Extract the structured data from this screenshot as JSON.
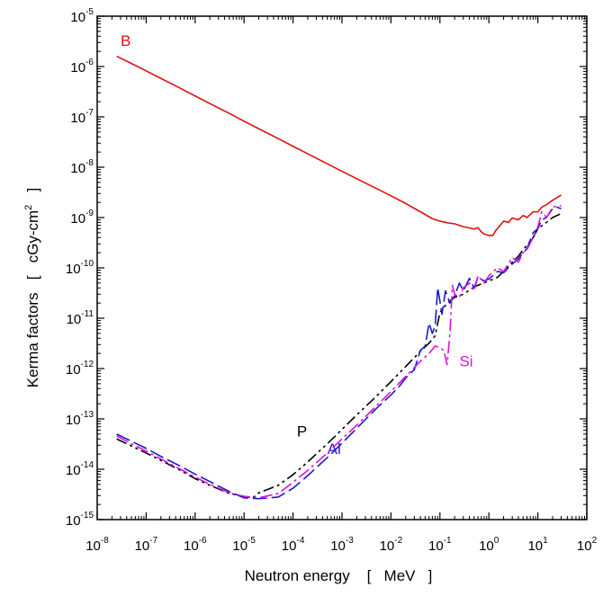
{
  "chart_data": {
    "type": "line",
    "title": "",
    "xlabel": "Neutron energy    [   MeV   ]",
    "ylabel_main": "Kerma factors   [   cGy-cm",
    "ylabel_sup": "2",
    "ylabel_end": "   ]",
    "x_scale": "log",
    "y_scale": "log",
    "xlim": [
      1e-08,
      100
    ],
    "ylim": [
      1e-15,
      1e-05
    ],
    "x_ticks": [
      {
        "base": "10",
        "exp": "-8",
        "value": 1e-08
      },
      {
        "base": "10",
        "exp": "-7",
        "value": 1e-07
      },
      {
        "base": "10",
        "exp": "-6",
        "value": 1e-06
      },
      {
        "base": "10",
        "exp": "-5",
        "value": 1e-05
      },
      {
        "base": "10",
        "exp": "-4",
        "value": 0.0001
      },
      {
        "base": "10",
        "exp": "-3",
        "value": 0.001
      },
      {
        "base": "10",
        "exp": "-2",
        "value": 0.01
      },
      {
        "base": "10",
        "exp": "-1",
        "value": 0.1
      },
      {
        "base": "10",
        "exp": "0",
        "value": 1
      },
      {
        "base": "10",
        "exp": "1",
        "value": 10
      },
      {
        "base": "10",
        "exp": "2",
        "value": 100
      }
    ],
    "y_ticks": [
      {
        "base": "10",
        "exp": "-5",
        "value": 1e-05
      },
      {
        "base": "10",
        "exp": "-6",
        "value": 1e-06
      },
      {
        "base": "10",
        "exp": "-7",
        "value": 1e-07
      },
      {
        "base": "10",
        "exp": "-8",
        "value": 1e-08
      },
      {
        "base": "10",
        "exp": "-9",
        "value": 1e-09
      },
      {
        "base": "10",
        "exp": "-10",
        "value": 1e-10
      },
      {
        "base": "10",
        "exp": "-11",
        "value": 1e-11
      },
      {
        "base": "10",
        "exp": "-12",
        "value": 1e-12
      },
      {
        "base": "10",
        "exp": "-13",
        "value": 1e-13
      },
      {
        "base": "10",
        "exp": "-14",
        "value": 1e-14
      },
      {
        "base": "10",
        "exp": "-15",
        "value": 1e-15
      }
    ],
    "series": [
      {
        "name": "B",
        "color": "#dd1111",
        "dash": "solid",
        "label_at": [
          3e-08,
          2.6e-06
        ],
        "points": [
          [
            2.5e-08,
            1.6e-06
          ],
          [
            5e-08,
            1.15e-06
          ],
          [
            1e-07,
            8.2e-07
          ],
          [
            2e-07,
            5.8e-07
          ],
          [
            5e-07,
            3.7e-07
          ],
          [
            1e-06,
            2.6e-07
          ],
          [
            2e-06,
            1.84e-07
          ],
          [
            5e-06,
            1.17e-07
          ],
          [
            1e-05,
            8.2e-08
          ],
          [
            2e-05,
            5.8e-08
          ],
          [
            5e-05,
            3.7e-08
          ],
          [
            0.0001,
            2.6e-08
          ],
          [
            0.0002,
            1.85e-08
          ],
          [
            0.0005,
            1.17e-08
          ],
          [
            0.001,
            8.3e-09
          ],
          [
            0.002,
            5.9e-09
          ],
          [
            0.005,
            3.8e-09
          ],
          [
            0.01,
            2.7e-09
          ],
          [
            0.02,
            1.9e-09
          ],
          [
            0.04,
            1.3e-09
          ],
          [
            0.07,
            9.5e-10
          ],
          [
            0.1,
            8.5e-10
          ],
          [
            0.15,
            7.8e-10
          ],
          [
            0.2,
            7.5e-10
          ],
          [
            0.3,
            6.6e-10
          ],
          [
            0.4,
            6.2e-10
          ],
          [
            0.5,
            5.9e-10
          ],
          [
            0.6,
            6.3e-10
          ],
          [
            0.7,
            5.2e-10
          ],
          [
            0.8,
            4.7e-10
          ],
          [
            1,
            4.4e-10
          ],
          [
            1.2,
            4.4e-10
          ],
          [
            1.4,
            5.6e-10
          ],
          [
            1.7,
            7e-10
          ],
          [
            2,
            8.5e-10
          ],
          [
            2.5,
            8e-10
          ],
          [
            3,
            9.8e-10
          ],
          [
            4,
            9e-10
          ],
          [
            5,
            1.1e-09
          ],
          [
            6,
            1e-09
          ],
          [
            8,
            1.3e-09
          ],
          [
            10,
            1.3e-09
          ],
          [
            12,
            1.6e-09
          ],
          [
            15,
            1.8e-09
          ],
          [
            20,
            2.2e-09
          ],
          [
            25,
            2.5e-09
          ],
          [
            30,
            2.8e-09
          ]
        ]
      },
      {
        "name": "P",
        "color": "#000000",
        "dash": "12,4,3,4,3,4",
        "label_at": [
          0.00012,
          4.5e-14
        ],
        "points": [
          [
            2.5e-08,
            4e-14
          ],
          [
            5e-08,
            2.9e-14
          ],
          [
            1e-07,
            2.1e-14
          ],
          [
            2e-07,
            1.5e-14
          ],
          [
            5e-07,
            9.5e-15
          ],
          [
            1e-06,
            6.5e-15
          ],
          [
            2e-06,
            4.8e-15
          ],
          [
            5e-06,
            3.3e-15
          ],
          [
            1e-05,
            2.9e-15
          ],
          [
            1.5e-05,
            2.7e-15
          ],
          [
            2e-05,
            3.4e-15
          ],
          [
            5e-05,
            4.8e-15
          ],
          [
            0.0001,
            7.8e-15
          ],
          [
            0.0002,
            1.4e-14
          ],
          [
            0.0005,
            3.2e-14
          ],
          [
            0.001,
            6.2e-14
          ],
          [
            0.002,
            1.2e-13
          ],
          [
            0.005,
            2.8e-13
          ],
          [
            0.01,
            5.5e-13
          ],
          [
            0.02,
            1.1e-12
          ],
          [
            0.04,
            2.2e-12
          ],
          [
            0.06,
            3.2e-12
          ],
          [
            0.08,
            4.5e-12
          ],
          [
            0.1,
            1.3e-11
          ],
          [
            0.13,
            1.8e-11
          ],
          [
            0.16,
            2.2e-11
          ],
          [
            0.2,
            2.6e-11
          ],
          [
            0.3,
            3e-11
          ],
          [
            0.5,
            4.2e-11
          ],
          [
            0.7,
            4.8e-11
          ],
          [
            1,
            5.5e-11
          ],
          [
            1.5,
            6.5e-11
          ],
          [
            2,
            8.5e-11
          ],
          [
            3,
            1.3e-10
          ],
          [
            4,
            1.7e-10
          ],
          [
            5,
            2.3e-10
          ],
          [
            6,
            2.8e-10
          ],
          [
            8,
            4e-10
          ],
          [
            10,
            6e-10
          ],
          [
            15,
            8e-10
          ],
          [
            20,
            1e-09
          ],
          [
            30,
            1.2e-09
          ]
        ]
      },
      {
        "name": "Al",
        "color": "#1a1acc",
        "dash": "16,5",
        "label_at": [
          0.0005,
          2e-14
        ],
        "points": [
          [
            2.5e-08,
            5e-14
          ],
          [
            5e-08,
            3.6e-14
          ],
          [
            1e-07,
            2.6e-14
          ],
          [
            2e-07,
            1.8e-14
          ],
          [
            5e-07,
            1.15e-14
          ],
          [
            1e-06,
            8e-15
          ],
          [
            2e-06,
            5.7e-15
          ],
          [
            5e-06,
            3.6e-15
          ],
          [
            1e-05,
            2.7e-15
          ],
          [
            2e-05,
            2.6e-15
          ],
          [
            5e-05,
            2.8e-15
          ],
          [
            0.0001,
            4.2e-15
          ],
          [
            0.0002,
            7.5e-15
          ],
          [
            0.0005,
            1.7e-14
          ],
          [
            0.001,
            3.3e-14
          ],
          [
            0.002,
            6.5e-14
          ],
          [
            0.005,
            1.6e-13
          ],
          [
            0.01,
            3e-13
          ],
          [
            0.015,
            4.5e-13
          ],
          [
            0.02,
            6.5e-13
          ],
          [
            0.03,
            9.5e-13
          ],
          [
            0.04,
            2.3e-12
          ],
          [
            0.05,
            2.8e-12
          ],
          [
            0.06,
            8e-12
          ],
          [
            0.07,
            5e-12
          ],
          [
            0.08,
            7e-12
          ],
          [
            0.09,
            4e-11
          ],
          [
            0.1,
            2.2e-11
          ],
          [
            0.11,
            1.2e-11
          ],
          [
            0.13,
            3.5e-11
          ],
          [
            0.16,
            2e-11
          ],
          [
            0.2,
            2.8e-11
          ],
          [
            0.25,
            5e-11
          ],
          [
            0.3,
            3.5e-11
          ],
          [
            0.4,
            6.2e-11
          ],
          [
            0.5,
            4e-11
          ],
          [
            0.6,
            6.5e-11
          ],
          [
            0.8,
            5.5e-11
          ],
          [
            1,
            6e-11
          ],
          [
            1.5,
            8.5e-11
          ],
          [
            2,
            8e-11
          ],
          [
            3,
            1.2e-10
          ],
          [
            4,
            1.5e-10
          ],
          [
            5,
            2e-10
          ],
          [
            6,
            2.4e-10
          ],
          [
            8,
            5e-10
          ],
          [
            10,
            6e-10
          ],
          [
            12,
            9e-10
          ],
          [
            15,
            1e-09
          ],
          [
            20,
            1.5e-09
          ],
          [
            25,
            1.6e-09
          ],
          [
            30,
            1.5e-09
          ]
        ]
      },
      {
        "name": "Si",
        "color": "#dd11dd",
        "dash": "14,4,3,4",
        "label_at": [
          0.25,
          1.1e-12
        ],
        "points": [
          [
            2.5e-08,
            4.6e-14
          ],
          [
            5e-08,
            3.2e-14
          ],
          [
            1e-07,
            2.3e-14
          ],
          [
            2e-07,
            1.6e-14
          ],
          [
            5e-07,
            1e-14
          ],
          [
            1e-06,
            7e-15
          ],
          [
            2e-06,
            5e-15
          ],
          [
            5e-06,
            3.4e-15
          ],
          [
            1e-05,
            2.9e-15
          ],
          [
            2e-05,
            2.7e-15
          ],
          [
            5e-05,
            3.3e-15
          ],
          [
            0.0001,
            5.5e-15
          ],
          [
            0.0002,
            9.5e-15
          ],
          [
            0.0005,
            2.1e-14
          ],
          [
            0.001,
            4e-14
          ],
          [
            0.002,
            7.5e-14
          ],
          [
            0.005,
            1.8e-13
          ],
          [
            0.01,
            3.5e-13
          ],
          [
            0.02,
            7e-13
          ],
          [
            0.04,
            1.4e-12
          ],
          [
            0.06,
            2e-12
          ],
          [
            0.08,
            2.8e-12
          ],
          [
            0.1,
            2.6e-12
          ],
          [
            0.12,
            2.3e-12
          ],
          [
            0.14,
            1.2e-12
          ],
          [
            0.16,
            5e-12
          ],
          [
            0.18,
            4.5e-11
          ],
          [
            0.2,
            3e-11
          ],
          [
            0.25,
            2.6e-11
          ],
          [
            0.3,
            4e-11
          ],
          [
            0.4,
            5e-11
          ],
          [
            0.5,
            3.5e-11
          ],
          [
            0.6,
            7e-11
          ],
          [
            0.8,
            5e-11
          ],
          [
            1,
            7e-11
          ],
          [
            1.5,
            1e-10
          ],
          [
            2,
            8.5e-11
          ],
          [
            3,
            1.6e-10
          ],
          [
            4,
            1.3e-10
          ],
          [
            5,
            2e-10
          ],
          [
            6,
            2.3e-10
          ],
          [
            8,
            4e-10
          ],
          [
            10,
            6.5e-10
          ],
          [
            12,
            1.3e-09
          ],
          [
            15,
            1e-09
          ],
          [
            20,
            1.6e-09
          ],
          [
            25,
            1.7e-09
          ],
          [
            30,
            1.7e-09
          ]
        ]
      }
    ]
  }
}
